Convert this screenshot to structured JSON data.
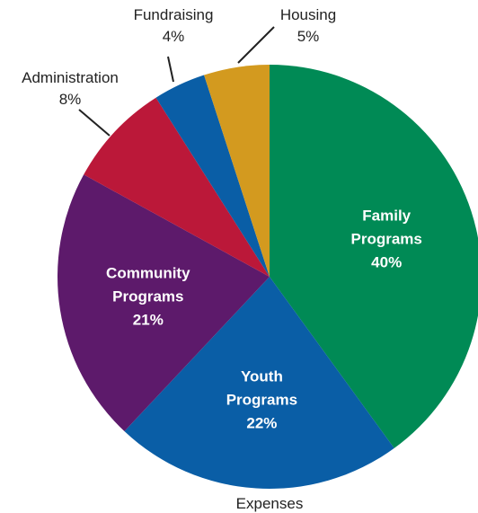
{
  "chart_data": {
    "type": "pie",
    "title": "",
    "xlabel": "Expenses",
    "slices": [
      {
        "name": "Family Programs",
        "lines": [
          "Family",
          "Programs"
        ],
        "value": 40,
        "label": "40%",
        "color": "#008a55",
        "placement": "inside"
      },
      {
        "name": "Youth Programs",
        "lines": [
          "Youth",
          "Programs"
        ],
        "value": 22,
        "label": "22%",
        "color": "#0a5ea6",
        "placement": "inside"
      },
      {
        "name": "Community Programs",
        "lines": [
          "Community",
          "Programs"
        ],
        "value": 21,
        "label": "21%",
        "color": "#5d1a6b",
        "placement": "inside"
      },
      {
        "name": "Administration",
        "lines": [
          "Administration"
        ],
        "value": 8,
        "label": "8%",
        "color": "#bb1839",
        "placement": "outside"
      },
      {
        "name": "Fundraising",
        "lines": [
          "Fundraising"
        ],
        "value": 4,
        "label": "4%",
        "color": "#0a5ea6",
        "placement": "outside"
      },
      {
        "name": "Housing",
        "lines": [
          "Housing"
        ],
        "value": 5,
        "label": "5%",
        "color": "#d39a1f",
        "placement": "outside"
      }
    ],
    "start": "top",
    "direction": "clockwise",
    "legend": "none"
  }
}
